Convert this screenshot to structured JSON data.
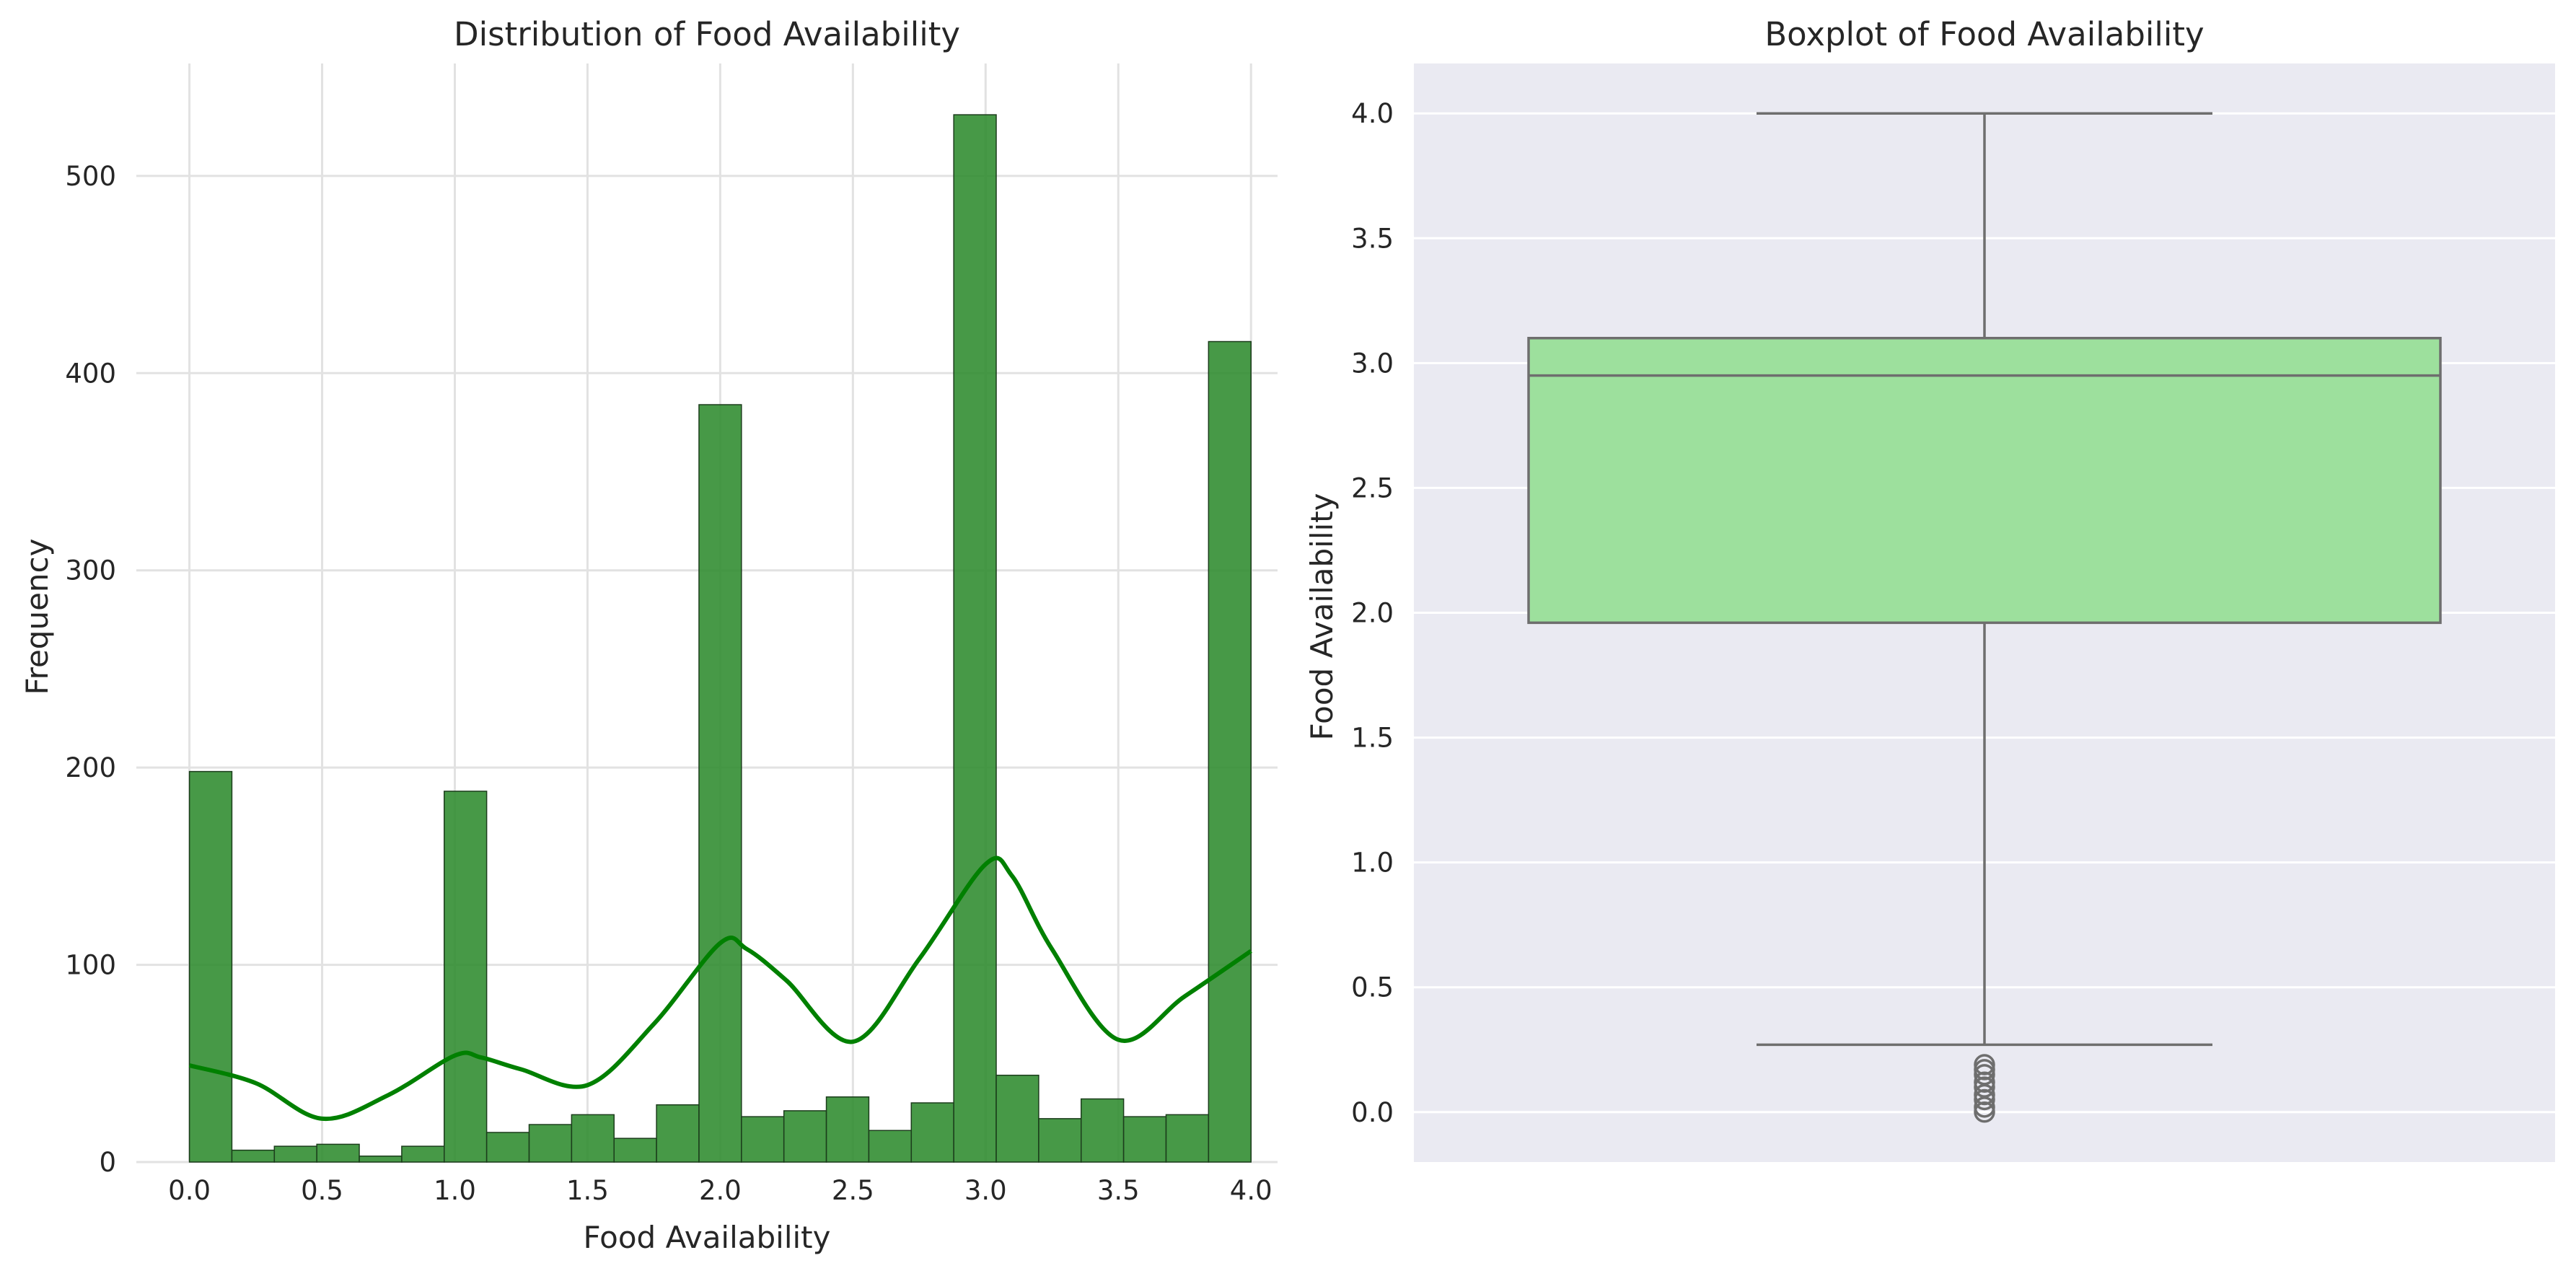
{
  "chart_data": [
    {
      "type": "bar",
      "title": "Distribution of Food Availability",
      "xlabel": "Food Availability",
      "ylabel": "Frequency",
      "xlim": [
        -0.2,
        4.1
      ],
      "ylim": [
        0,
        557
      ],
      "grid": true,
      "x_ticks": [
        "0.0",
        "0.5",
        "1.0",
        "1.5",
        "2.0",
        "2.5",
        "3.0",
        "3.5",
        "4.0"
      ],
      "y_ticks": [
        "0",
        "100",
        "200",
        "300",
        "400",
        "500"
      ],
      "bar_color": "#2e8b2e",
      "bin_width": 0.16,
      "bins": [
        0.0,
        0.16,
        0.32,
        0.48,
        0.64,
        0.8,
        0.96,
        1.12,
        1.28,
        1.44,
        1.6,
        1.76,
        1.92,
        2.08,
        2.24,
        2.4,
        2.56,
        2.72,
        2.88,
        3.04,
        3.2,
        3.36,
        3.52,
        3.68,
        3.84
      ],
      "values": [
        198,
        6,
        8,
        9,
        3,
        8,
        188,
        15,
        19,
        24,
        12,
        29,
        384,
        23,
        26,
        33,
        16,
        30,
        531,
        44,
        22,
        32,
        23,
        24,
        416
      ],
      "kde": {
        "color": "#008000",
        "x": [
          0.0,
          0.25,
          0.5,
          0.75,
          1.0,
          1.1,
          1.25,
          1.5,
          1.75,
          2.0,
          2.1,
          2.25,
          2.5,
          2.75,
          3.0,
          3.1,
          3.25,
          3.5,
          3.75,
          4.0
        ],
        "y": [
          49,
          40,
          22,
          34,
          54,
          53,
          47,
          39,
          70,
          111,
          108,
          92,
          61,
          103,
          151,
          145,
          108,
          62,
          84,
          107
        ]
      }
    },
    {
      "type": "box",
      "title": "Boxplot of Food Availability",
      "ylabel": "Food Availability",
      "ylim": [
        -0.2,
        4.2
      ],
      "grid": true,
      "y_ticks": [
        "0.0",
        "0.5",
        "1.0",
        "1.5",
        "2.0",
        "2.5",
        "3.0",
        "3.5",
        "4.0"
      ],
      "box_color": "#9de09d",
      "line_color": "#6e6e6e",
      "whisker_low": 0.27,
      "q1": 1.96,
      "median": 2.95,
      "q3": 3.1,
      "whisker_high": 4.0,
      "outliers": [
        0.0,
        0.02,
        0.05,
        0.07,
        0.1,
        0.12,
        0.15,
        0.17,
        0.19
      ]
    }
  ]
}
